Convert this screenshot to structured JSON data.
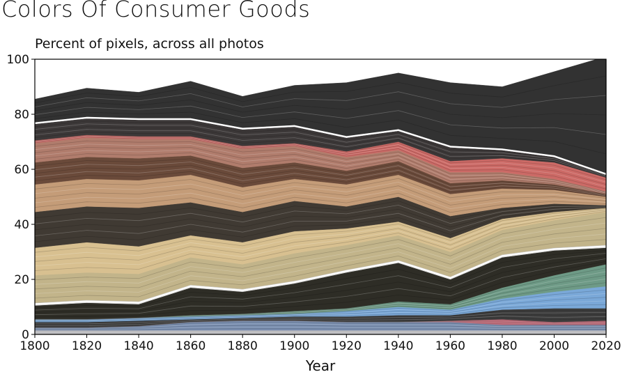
{
  "chart_data": {
    "type": "area",
    "title": "Colors Of Consumer Goods",
    "subtitle": "Percent of pixels, across all photos",
    "xlabel": "Year",
    "ylabel": "",
    "x": [
      1800,
      1820,
      1840,
      1860,
      1880,
      1900,
      1920,
      1940,
      1960,
      1980,
      2000,
      2020
    ],
    "xlim": [
      1800,
      2020
    ],
    "ylim": [
      0,
      100
    ],
    "x_ticks": [
      "1800",
      "1820",
      "1840",
      "1860",
      "1880",
      "1900",
      "1920",
      "1940",
      "1960",
      "1980",
      "2000",
      "2020"
    ],
    "y_ticks": [
      "0",
      "20",
      "40",
      "60",
      "80",
      "100"
    ],
    "grid": false,
    "series": [
      {
        "color": "#c8c8cc",
        "values": [
          1.5,
          1.5,
          1.5,
          1.5,
          1.5,
          1.5,
          1.5,
          1.5,
          1.5,
          1.5,
          1.5,
          1.5
        ]
      },
      {
        "color": "#7a8fb0",
        "values": [
          1,
          1,
          1.5,
          3,
          3.5,
          3.5,
          3,
          3,
          3,
          2,
          2,
          2
        ]
      },
      {
        "color": "#c06a78",
        "values": [
          0,
          0,
          0,
          0,
          0,
          0,
          0,
          0,
          0.5,
          2,
          1,
          1.5
        ]
      },
      {
        "color": "#3c3c3c",
        "values": [
          2,
          2,
          2,
          1,
          1,
          1.5,
          2,
          2.5,
          2,
          3.5,
          5,
          4.5
        ]
      },
      {
        "color": "#7aa8d8",
        "values": [
          1,
          1,
          1,
          1,
          1,
          1,
          2,
          3,
          2,
          4,
          6,
          8
        ]
      },
      {
        "color": "#6e9a86",
        "values": [
          0,
          0,
          0,
          0.5,
          0.5,
          1,
          1,
          2,
          2,
          4,
          6,
          8
        ]
      },
      {
        "color": "#2e2d26",
        "values": [
          5,
          6,
          5,
          10,
          8,
          10,
          13,
          14,
          9,
          11,
          9,
          6
        ]
      },
      {
        "color": "#f0f0f0",
        "values": [
          1,
          1,
          1,
          1,
          1,
          1,
          1,
          1,
          1,
          1,
          1,
          1
        ]
      },
      {
        "color": "#c2b48a",
        "values": [
          10,
          10,
          10,
          10,
          9,
          10,
          9,
          9,
          9,
          9,
          10,
          12
        ]
      },
      {
        "color": "#d8c090",
        "values": [
          10,
          11,
          10,
          8,
          8,
          8,
          6,
          5,
          5,
          4,
          3,
          1.5
        ]
      },
      {
        "color": "#403a33",
        "values": [
          13,
          13,
          14,
          12,
          11,
          11,
          8,
          9,
          8,
          4,
          3,
          1
        ]
      },
      {
        "color": "#c49c78",
        "values": [
          10,
          10,
          10,
          10,
          9,
          8,
          8,
          8,
          8,
          7,
          5,
          3
        ]
      },
      {
        "color": "#6a4a3a",
        "values": [
          8,
          8,
          8,
          7,
          7,
          6,
          5,
          5,
          4,
          3,
          2,
          1
        ]
      },
      {
        "color": "#b07c6c",
        "values": [
          7,
          7,
          7,
          6,
          7,
          6,
          5,
          4,
          4,
          3,
          2,
          1
        ]
      },
      {
        "color": "#cc6a66",
        "values": [
          1,
          1,
          1,
          1,
          1,
          1,
          2,
          3,
          4,
          5,
          6,
          5
        ]
      },
      {
        "color": "#3c3838",
        "values": [
          6,
          6,
          6,
          6,
          6,
          6,
          5,
          4,
          5,
          3,
          2,
          1
        ]
      },
      {
        "color": "#f4f4f4",
        "values": [
          0.5,
          0.5,
          0.5,
          0.5,
          0.5,
          0.5,
          0.5,
          0.5,
          0.5,
          0.5,
          0.5,
          0.5
        ]
      },
      {
        "color": "#323232",
        "values": [
          8.5,
          10.5,
          9.5,
          13.5,
          11.5,
          14.5,
          19.5,
          20.5,
          23,
          22.5,
          30.5,
          42.5
        ]
      }
    ]
  }
}
